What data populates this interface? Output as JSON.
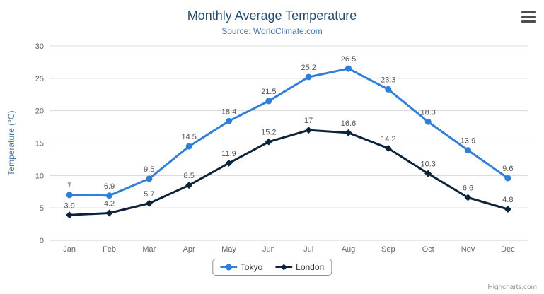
{
  "header": {
    "title": "Monthly Average Temperature",
    "subtitle": "Source: WorldClimate.com"
  },
  "chart_data": {
    "type": "line",
    "categories": [
      "Jan",
      "Feb",
      "Mar",
      "Apr",
      "May",
      "Jun",
      "Jul",
      "Aug",
      "Sep",
      "Oct",
      "Nov",
      "Dec"
    ],
    "series": [
      {
        "name": "Tokyo",
        "color": "#2f7ed8",
        "marker": "circle",
        "values": [
          7,
          6.9,
          9.5,
          14.5,
          18.4,
          21.5,
          25.2,
          26.5,
          23.3,
          18.3,
          13.9,
          9.6
        ]
      },
      {
        "name": "London",
        "color": "#0d233a",
        "marker": "diamond",
        "values": [
          3.9,
          4.2,
          5.7,
          8.5,
          11.9,
          15.2,
          17,
          16.6,
          14.2,
          10.3,
          6.6,
          4.8
        ]
      }
    ],
    "title": "Monthly Average Temperature",
    "subtitle": "Source: WorldClimate.com",
    "xlabel": "",
    "ylabel": "Temperature (°C)",
    "ylim": [
      0,
      30
    ],
    "yticks": [
      0,
      5,
      10,
      15,
      20,
      25,
      30
    ],
    "grid": true,
    "data_labels": true,
    "legend_position": "bottom-center"
  },
  "icons": {
    "context_menu": "hamburger-menu"
  },
  "credits": "Highcharts.com",
  "colors": {
    "title": "#274b6d",
    "subtitle": "#4572a7",
    "axis_title": "#4d759e",
    "axis_labels": "#666666",
    "grid": "#d8d8d8",
    "axis_line": "#c0d0e0",
    "data_label": "#555555",
    "legend_border": "#909090",
    "credits": "#909090"
  }
}
